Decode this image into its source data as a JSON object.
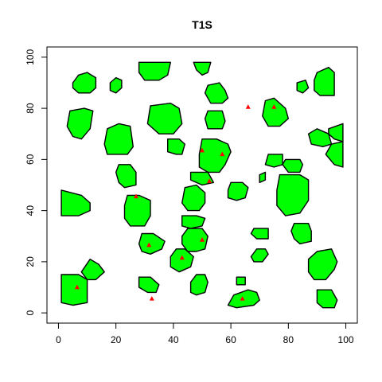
{
  "chart_data": {
    "type": "scatter",
    "title": "T1S",
    "xlabel": "",
    "ylabel": "",
    "xlim": [
      -4,
      104
    ],
    "ylim": [
      -4,
      104
    ],
    "x_ticks": [
      0,
      20,
      40,
      60,
      80,
      100
    ],
    "y_ticks": [
      0,
      20,
      40,
      60,
      80,
      100
    ],
    "grid": false,
    "colors": {
      "polygon_fill": "#00ff00",
      "polygon_stroke": "#000000",
      "point": "#ff0000"
    },
    "polygons": [
      [
        [
          5,
          90
        ],
        [
          7,
          93
        ],
        [
          10,
          94
        ],
        [
          13,
          92
        ],
        [
          13,
          88
        ],
        [
          11,
          86
        ],
        [
          7,
          86
        ],
        [
          5,
          88
        ]
      ],
      [
        [
          18,
          90
        ],
        [
          20,
          92
        ],
        [
          22,
          91
        ],
        [
          22,
          88
        ],
        [
          20,
          86
        ],
        [
          18,
          87
        ]
      ],
      [
        [
          28,
          98
        ],
        [
          39,
          98
        ],
        [
          38,
          93
        ],
        [
          35,
          91
        ],
        [
          30,
          91
        ],
        [
          28,
          94
        ]
      ],
      [
        [
          47,
          98
        ],
        [
          53,
          98
        ],
        [
          52,
          94
        ],
        [
          50,
          93
        ],
        [
          48,
          95
        ]
      ],
      [
        [
          90,
          94
        ],
        [
          94,
          96
        ],
        [
          96,
          94
        ],
        [
          96,
          85
        ],
        [
          91,
          85
        ],
        [
          89,
          87
        ],
        [
          89,
          91
        ]
      ],
      [
        [
          83,
          90
        ],
        [
          86,
          91
        ],
        [
          87,
          88
        ],
        [
          85,
          86
        ],
        [
          83,
          87
        ]
      ],
      [
        [
          52,
          89
        ],
        [
          56,
          90
        ],
        [
          58,
          87
        ],
        [
          59,
          84
        ],
        [
          57,
          82
        ],
        [
          53,
          82
        ],
        [
          51,
          86
        ]
      ],
      [
        [
          4,
          79
        ],
        [
          9,
          80
        ],
        [
          12,
          79
        ],
        [
          11,
          72
        ],
        [
          8,
          68
        ],
        [
          5,
          69
        ],
        [
          3,
          73
        ]
      ],
      [
        [
          32,
          81
        ],
        [
          39,
          82
        ],
        [
          42,
          80
        ],
        [
          43,
          74
        ],
        [
          40,
          70
        ],
        [
          35,
          70
        ],
        [
          31,
          74
        ]
      ],
      [
        [
          52,
          79
        ],
        [
          57,
          79
        ],
        [
          58,
          75
        ],
        [
          57,
          72
        ],
        [
          52,
          72
        ],
        [
          51,
          76
        ]
      ],
      [
        [
          72,
          83
        ],
        [
          75,
          84
        ],
        [
          79,
          80
        ],
        [
          80,
          76
        ],
        [
          77,
          73
        ],
        [
          73,
          73
        ],
        [
          71,
          77
        ]
      ],
      [
        [
          87,
          70
        ],
        [
          90,
          72
        ],
        [
          94,
          70
        ],
        [
          95,
          66
        ],
        [
          92,
          65
        ],
        [
          88,
          66
        ]
      ],
      [
        [
          94,
          72
        ],
        [
          99,
          74
        ],
        [
          99,
          67
        ],
        [
          96,
          68
        ],
        [
          94,
          70
        ]
      ],
      [
        [
          17,
          72
        ],
        [
          21,
          74
        ],
        [
          25,
          73
        ],
        [
          26,
          65
        ],
        [
          24,
          62
        ],
        [
          17,
          62
        ],
        [
          16,
          66
        ]
      ],
      [
        [
          38,
          68
        ],
        [
          42,
          68
        ],
        [
          44,
          66
        ],
        [
          43,
          62
        ],
        [
          41,
          62
        ],
        [
          38,
          63
        ]
      ],
      [
        [
          50,
          68
        ],
        [
          55,
          68
        ],
        [
          59,
          66
        ],
        [
          60,
          63
        ],
        [
          58,
          58
        ],
        [
          56,
          55
        ],
        [
          52,
          55
        ],
        [
          49,
          57
        ],
        [
          49,
          62
        ]
      ],
      [
        [
          95,
          66
        ],
        [
          99,
          67
        ],
        [
          99,
          57
        ],
        [
          96,
          58
        ],
        [
          93,
          62
        ]
      ],
      [
        [
          73,
          62
        ],
        [
          78,
          62
        ],
        [
          78,
          58
        ],
        [
          75,
          57
        ],
        [
          72,
          58
        ]
      ],
      [
        [
          79,
          60
        ],
        [
          84,
          60
        ],
        [
          85,
          58
        ],
        [
          84,
          55
        ],
        [
          80,
          55
        ],
        [
          78,
          58
        ]
      ],
      [
        [
          21,
          58
        ],
        [
          25,
          58
        ],
        [
          27,
          55
        ],
        [
          27,
          50
        ],
        [
          23,
          49
        ],
        [
          21,
          51
        ],
        [
          20,
          55
        ]
      ],
      [
        [
          46,
          55
        ],
        [
          52,
          55
        ],
        [
          54,
          51
        ],
        [
          50,
          50
        ],
        [
          46,
          52
        ]
      ],
      [
        [
          70,
          54
        ],
        [
          72,
          55
        ],
        [
          72,
          52
        ],
        [
          70,
          51
        ]
      ],
      [
        [
          77,
          54
        ],
        [
          84,
          54
        ],
        [
          87,
          52
        ],
        [
          87,
          44
        ],
        [
          84,
          39
        ],
        [
          79,
          38
        ],
        [
          76,
          42
        ],
        [
          76,
          48
        ]
      ],
      [
        [
          60,
          51
        ],
        [
          64,
          51
        ],
        [
          66,
          49
        ],
        [
          65,
          45
        ],
        [
          62,
          44
        ],
        [
          59,
          45
        ],
        [
          59,
          48
        ]
      ],
      [
        [
          1,
          48
        ],
        [
          8,
          46
        ],
        [
          11,
          43
        ],
        [
          11,
          40
        ],
        [
          7,
          38
        ],
        [
          1,
          38
        ]
      ],
      [
        [
          44,
          49
        ],
        [
          48,
          50
        ],
        [
          51,
          47
        ],
        [
          51,
          43
        ],
        [
          49,
          40
        ],
        [
          45,
          40
        ],
        [
          43,
          43
        ]
      ],
      [
        [
          24,
          46
        ],
        [
          28,
          46
        ],
        [
          32,
          44
        ],
        [
          32,
          38
        ],
        [
          30,
          34
        ],
        [
          25,
          34
        ],
        [
          23,
          37
        ],
        [
          23,
          42
        ]
      ],
      [
        [
          43,
          38
        ],
        [
          48,
          38
        ],
        [
          51,
          37
        ],
        [
          50,
          34
        ],
        [
          46,
          33
        ],
        [
          43,
          34
        ]
      ],
      [
        [
          68,
          33
        ],
        [
          73,
          33
        ],
        [
          73,
          29
        ],
        [
          69,
          29
        ],
        [
          67,
          31
        ]
      ],
      [
        [
          82,
          35
        ],
        [
          87,
          35
        ],
        [
          88,
          32
        ],
        [
          88,
          28
        ],
        [
          84,
          27
        ],
        [
          82,
          29
        ],
        [
          81,
          32
        ]
      ],
      [
        [
          45,
          33
        ],
        [
          50,
          33
        ],
        [
          52,
          30
        ],
        [
          51,
          25
        ],
        [
          48,
          24
        ],
        [
          45,
          24
        ],
        [
          43,
          27
        ],
        [
          43,
          30
        ]
      ],
      [
        [
          29,
          31
        ],
        [
          33,
          31
        ],
        [
          37,
          28
        ],
        [
          36,
          25
        ],
        [
          32,
          23
        ],
        [
          29,
          24
        ],
        [
          28,
          27
        ]
      ],
      [
        [
          69,
          25
        ],
        [
          72,
          25
        ],
        [
          73,
          23
        ],
        [
          71,
          20
        ],
        [
          68,
          20
        ],
        [
          67,
          22
        ]
      ],
      [
        [
          41,
          25
        ],
        [
          44,
          25
        ],
        [
          47,
          22
        ],
        [
          46,
          18
        ],
        [
          42,
          16
        ],
        [
          39,
          18
        ],
        [
          39,
          22
        ]
      ],
      [
        [
          90,
          24
        ],
        [
          95,
          25
        ],
        [
          97,
          20
        ],
        [
          96,
          17
        ],
        [
          93,
          13
        ],
        [
          89,
          13
        ],
        [
          87,
          16
        ],
        [
          87,
          21
        ]
      ],
      [
        [
          11,
          21
        ],
        [
          14,
          19
        ],
        [
          16,
          16
        ],
        [
          13,
          13
        ],
        [
          10,
          13
        ],
        [
          8,
          16
        ]
      ],
      [
        [
          48,
          15
        ],
        [
          51,
          15
        ],
        [
          52,
          12
        ],
        [
          51,
          8
        ],
        [
          48,
          7
        ],
        [
          46,
          8
        ],
        [
          46,
          12
        ]
      ],
      [
        [
          1,
          15
        ],
        [
          7,
          15
        ],
        [
          10,
          13
        ],
        [
          10,
          4
        ],
        [
          5,
          3
        ],
        [
          1,
          4
        ]
      ],
      [
        [
          28,
          14
        ],
        [
          32,
          14
        ],
        [
          35,
          11
        ],
        [
          34,
          8
        ],
        [
          31,
          8
        ],
        [
          28,
          10
        ]
      ],
      [
        [
          62,
          14
        ],
        [
          65,
          14
        ],
        [
          65,
          11
        ],
        [
          62,
          11
        ]
      ],
      [
        [
          61,
          7
        ],
        [
          66,
          9
        ],
        [
          69,
          8
        ],
        [
          70,
          5
        ],
        [
          68,
          3
        ],
        [
          62,
          2
        ],
        [
          59,
          3
        ]
      ],
      [
        [
          90,
          9
        ],
        [
          95,
          9
        ],
        [
          97,
          5
        ],
        [
          96,
          2
        ],
        [
          92,
          2
        ],
        [
          90,
          4
        ]
      ]
    ],
    "points": [
      [
        66,
        80.5
      ],
      [
        75,
        80.5
      ],
      [
        50,
        63.5
      ],
      [
        57,
        62
      ],
      [
        52.5,
        51.5
      ],
      [
        27,
        45.5
      ],
      [
        50,
        28.5
      ],
      [
        31.5,
        26.5
      ],
      [
        43,
        21.5
      ],
      [
        6.5,
        10
      ],
      [
        32.5,
        5.5
      ],
      [
        64,
        5.5
      ]
    ]
  }
}
